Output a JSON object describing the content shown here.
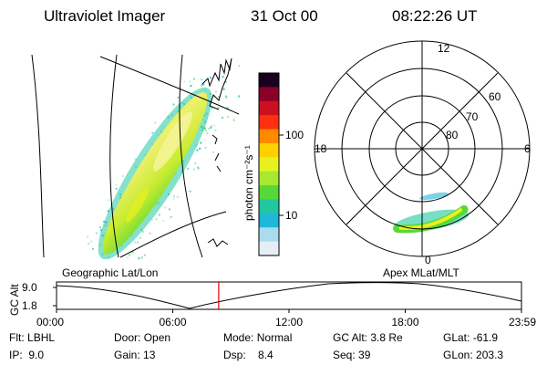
{
  "header": {
    "title": "Ultraviolet Imager",
    "date": "31 Oct 00",
    "time": "08:22:26 UT"
  },
  "colorbar": {
    "unit_label": "photon cm⁻²s⁻¹",
    "ticks": [
      "100",
      "10"
    ],
    "colors": [
      "#1a0020",
      "#8a0028",
      "#cc1020",
      "#ff3010",
      "#ff8a00",
      "#ffd000",
      "#e8f020",
      "#a8e830",
      "#58d838",
      "#20c8a0",
      "#20b8d8",
      "#a8dcee",
      "#e4eef4"
    ]
  },
  "geo_panel": {
    "label": "Geographic Lat/Lon"
  },
  "polar_panel": {
    "label": "Apex MLat/MLT",
    "mlt_labels": [
      "12",
      "18",
      "6",
      "0"
    ],
    "mlat_labels": [
      "60",
      "70",
      "80"
    ]
  },
  "altitude_plot": {
    "ylabel": "GC Alt",
    "yticks": [
      "9.0",
      "1.8"
    ],
    "xticks": [
      "00:00",
      "06:00",
      "12:00",
      "18:00",
      "23:59"
    ],
    "current_time_hours": 8.37,
    "marker_color": "#e00000"
  },
  "info": {
    "flt": {
      "label": "Flt:",
      "value": "LBHL"
    },
    "ip": {
      "label": "IP:",
      "value": "9.0"
    },
    "door": {
      "label": "Door:",
      "value": "Open"
    },
    "gain": {
      "label": "Gain:",
      "value": "13"
    },
    "mode": {
      "label": "Mode:",
      "value": "Normal"
    },
    "dsp": {
      "label": "Dsp:",
      "value": "8.4"
    },
    "gcalt": {
      "label": "GC Alt:",
      "value": "3.8 Re"
    },
    "seq": {
      "label": "Seq:",
      "value": "39"
    },
    "glat": {
      "label": "GLat:",
      "value": "-61.9"
    },
    "glon": {
      "label": "GLon:",
      "value": "203.3"
    }
  }
}
